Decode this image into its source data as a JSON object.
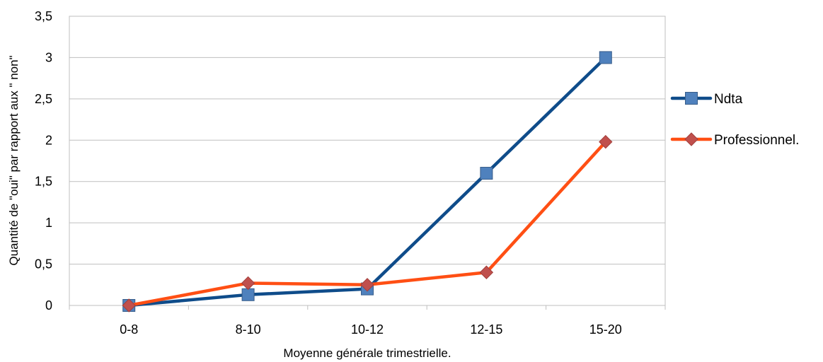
{
  "chart_data": {
    "type": "line",
    "title": "",
    "xlabel": "Moyenne générale trimestrielle.",
    "ylabel": "Quantité de \"oui\" par rapport aux \" non\"",
    "categories": [
      "0-8",
      "8-10",
      "10-12",
      "12-15",
      "15-20"
    ],
    "ylim": [
      0,
      3.5
    ],
    "yticks": [
      0,
      0.5,
      1,
      1.5,
      2,
      2.5,
      3,
      3.5
    ],
    "ytick_labels": [
      "0",
      "0,5",
      "1",
      "1,5",
      "2",
      "2,5",
      "3",
      "3,5"
    ],
    "grid": true,
    "legend_position": "right",
    "series": [
      {
        "name": "Ndta",
        "values": [
          0,
          0.13,
          0.2,
          1.6,
          3.0
        ],
        "line_color": "#0f4c8a",
        "marker": "square",
        "marker_color": "#4f81bd"
      },
      {
        "name": "Professionnel.",
        "values": [
          0,
          0.27,
          0.25,
          0.4,
          1.98
        ],
        "line_color": "#ff4f14",
        "marker": "diamond",
        "marker_color": "#c0504d"
      }
    ]
  }
}
